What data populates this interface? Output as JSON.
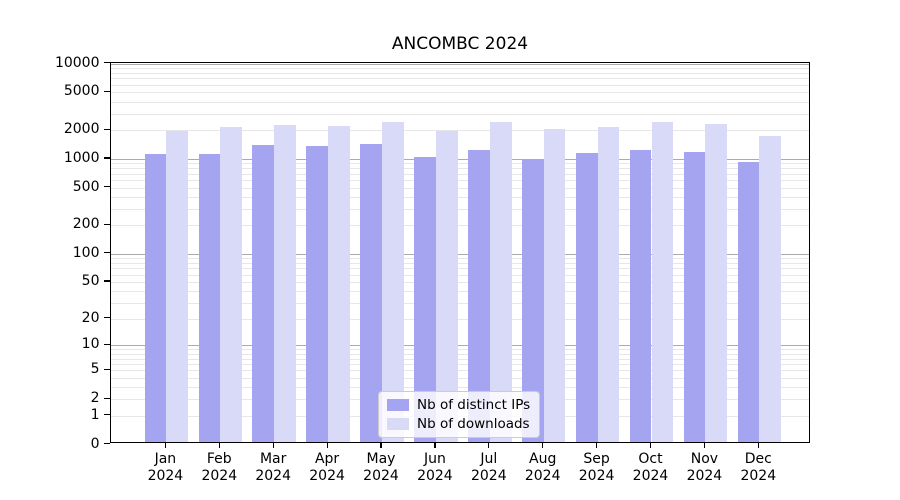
{
  "title": "ANCOMBC 2024",
  "chart_data": {
    "type": "bar",
    "title": "ANCOMBC 2024",
    "categories": [
      "Jan 2024",
      "Feb 2024",
      "Mar 2024",
      "Apr 2024",
      "May 2024",
      "Jun 2024",
      "Jul 2024",
      "Aug 2024",
      "Sep 2024",
      "Oct 2024",
      "Nov 2024",
      "Dec 2024"
    ],
    "series": [
      {
        "name": "Nb of distinct IPs",
        "color": "#a4a4f1",
        "values": [
          1120,
          1130,
          1410,
          1360,
          1440,
          1040,
          1250,
          990,
          1140,
          1230,
          1190,
          930
        ]
      },
      {
        "name": "Nb of downloads",
        "color": "#d9d9f8",
        "values": [
          1950,
          2150,
          2250,
          2220,
          2460,
          1960,
          2440,
          2060,
          2160,
          2420,
          2340,
          1730
        ]
      }
    ],
    "y_scale": "log1p",
    "y_ticks": [
      0,
      1,
      2,
      5,
      10,
      20,
      50,
      100,
      200,
      500,
      1000,
      2000,
      5000,
      10000
    ],
    "y_tick_labels": [
      "0",
      "1",
      "2",
      "5",
      "10",
      "20",
      "50",
      "100",
      "200",
      "500",
      "1000",
      "2000",
      "5000",
      "10000"
    ],
    "ylim": [
      0,
      10400
    ],
    "xlabel": "",
    "ylabel": "",
    "grid": true,
    "legend_position": "lower-center",
    "major_gridline_values": [
      10,
      100,
      1000,
      10000
    ]
  },
  "colors": {
    "distinct_ips_bar": "#a4a4f1",
    "downloads_bar": "#d9d9f8",
    "major_grid": "#ababab",
    "minor_grid": "#e7e7e7",
    "frame": "#000000"
  }
}
